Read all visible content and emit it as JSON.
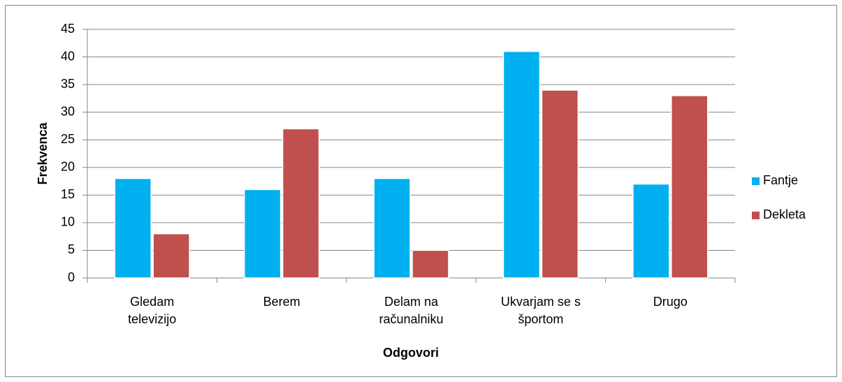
{
  "chart_data": {
    "type": "bar",
    "categories": [
      "Gledam\ntelevizijo",
      "Berem",
      "Delam na\nračunalniku",
      "Ukvarjam se s\nšportom",
      "Drugo"
    ],
    "series": [
      {
        "name": "Fantje",
        "color": "#00b0f0",
        "values": [
          18,
          16,
          18,
          41,
          17
        ]
      },
      {
        "name": "Dekleta",
        "color": "#c0504d",
        "values": [
          8,
          27,
          5,
          34,
          33
        ]
      }
    ],
    "ylim": [
      0,
      45
    ],
    "yticks": [
      0,
      5,
      10,
      15,
      20,
      25,
      30,
      35,
      40,
      45
    ],
    "grid": true,
    "ylabel": "Frekvenca",
    "xlabel": "Odgovori",
    "legend": "right"
  }
}
